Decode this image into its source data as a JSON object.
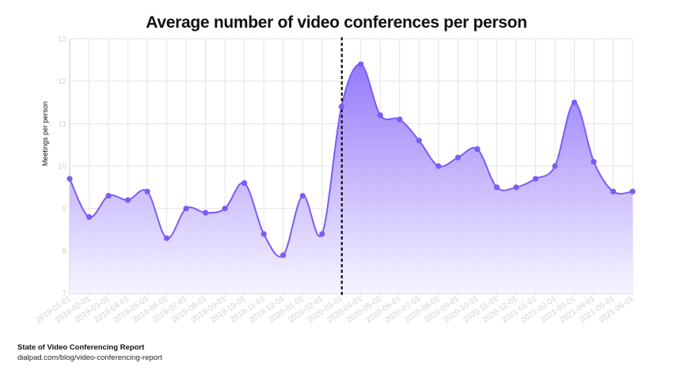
{
  "title": "Average number of video conferences per person",
  "footer": {
    "source": "State of Video Conferencing Report",
    "url": "dialpad.com/blog/video-conferencing-report"
  },
  "colors": {
    "line": "#7b5cf5",
    "area_top": "#9b82fb",
    "area_bottom": "#f7f4ff",
    "grid": "#e4e4e4",
    "tick_text": "#d2d2d2",
    "marker_line": "#111111"
  },
  "chart_data": {
    "type": "area",
    "title": "Average number of video conferences per person",
    "xlabel": "",
    "ylabel": "Meetings per person",
    "ylim": [
      7,
      13
    ],
    "yticks": [
      7,
      8,
      9,
      10,
      11,
      12,
      13
    ],
    "grid": true,
    "legend": null,
    "categories": [
      "2019-01-01",
      "2019-02-01",
      "2019-03-01",
      "2019-04-01",
      "2019-05-01",
      "2019-06-01",
      "2019-07-01",
      "2019-08-01",
      "2019-09-01",
      "2019-10-01",
      "2019-11-01",
      "2019-12-01",
      "2020-01-01",
      "2020-02-01",
      "2020-03-01",
      "2020-04-01",
      "2020-05-01",
      "2020-06-01",
      "2020-07-01",
      "2020-08-01",
      "2020-09-01",
      "2020-10-01",
      "2020-11-01",
      "2020-12-01",
      "2021-01-01",
      "2021-02-01",
      "2021-03-01",
      "2021-04-01",
      "2021-05-01",
      "2021-06-01"
    ],
    "series": [
      {
        "name": "Meetings per person",
        "values": [
          9.7,
          8.8,
          9.3,
          9.2,
          9.4,
          8.3,
          9.0,
          8.9,
          9.0,
          9.6,
          8.4,
          7.9,
          9.3,
          8.4,
          11.4,
          12.4,
          11.2,
          11.1,
          10.6,
          10.0,
          10.2,
          10.4,
          9.5,
          9.5,
          9.7,
          10.0,
          11.5,
          10.1,
          9.4,
          9.4
        ]
      }
    ],
    "annotations": [
      {
        "type": "vertical-dashed-line",
        "x": "2020-03-01",
        "note": "dashed vertical marker"
      }
    ]
  }
}
